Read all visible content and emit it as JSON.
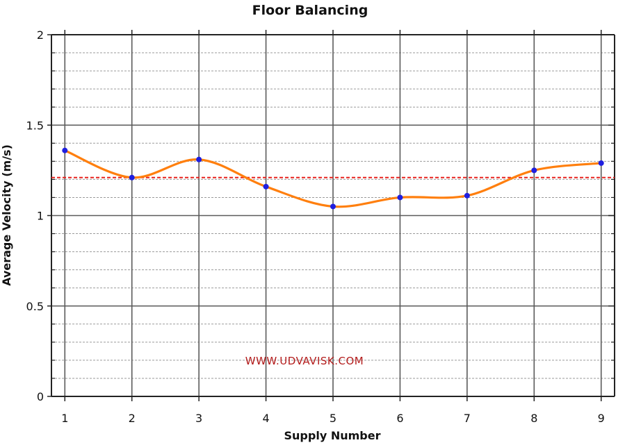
{
  "chart_data": {
    "type": "line",
    "title": "Floor Balancing",
    "xlabel": "Supply Number",
    "ylabel": "Average Velocity (m/s)",
    "x": [
      1,
      2,
      3,
      4,
      5,
      6,
      7,
      8,
      9
    ],
    "xticks": [
      "1",
      "2",
      "3",
      "4",
      "5",
      "6",
      "7",
      "8",
      "9"
    ],
    "xlim": [
      0.8,
      9.2
    ],
    "ylim": [
      0,
      2
    ],
    "yticks": [
      {
        "value": 0,
        "label": "0"
      },
      {
        "value": 0.5,
        "label": "0.5"
      },
      {
        "value": 1,
        "label": "1"
      },
      {
        "value": 1.5,
        "label": "1.5"
      },
      {
        "value": 2,
        "label": "2"
      }
    ],
    "series": [
      {
        "values": [
          1.36,
          1.21,
          1.31,
          1.16,
          1.05,
          1.1,
          1.11,
          1.25,
          1.29
        ],
        "line_color": "#ff7f0e",
        "marker_color": "#1f1fe0",
        "smooth": true
      }
    ],
    "reference_line": {
      "value": 1.21,
      "color": "#e8231f",
      "style": "dashed"
    },
    "grid": true,
    "minor_grid_step": 0.1
  },
  "watermark": {
    "text": "WWW.UDVAVISK.COM",
    "color": "#b31b1b"
  }
}
